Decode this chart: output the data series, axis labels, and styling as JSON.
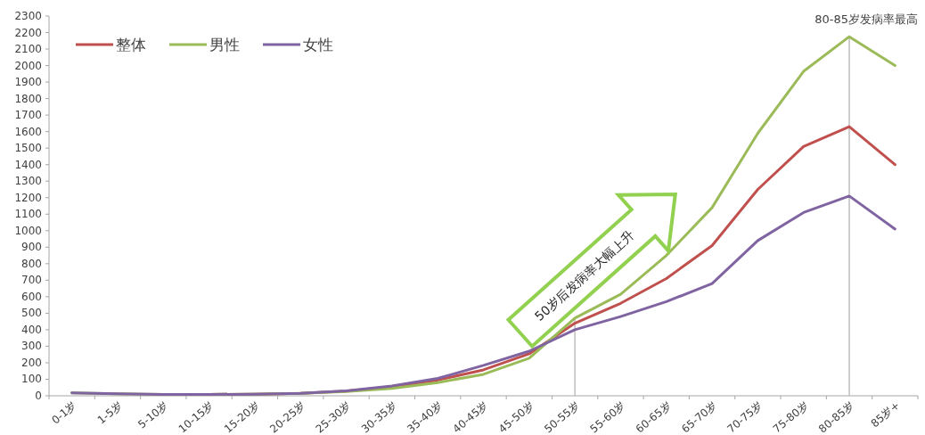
{
  "chart_data": {
    "type": "line",
    "categories": [
      "0-1岁",
      "1-5岁",
      "5-10岁",
      "10-15岁",
      "15-20岁",
      "20-25岁",
      "25-30岁",
      "30-35岁",
      "35-40岁",
      "40-45岁",
      "45-50岁",
      "50-55岁",
      "55-60岁",
      "60-65岁",
      "65-70岁",
      "70-75岁",
      "75-80岁",
      "80-85岁",
      "85岁+"
    ],
    "series": [
      {
        "name": "整体",
        "color": "#c0504d",
        "values": [
          null,
          null,
          8,
          8,
          10,
          15,
          28,
          55,
          95,
          157,
          254,
          440,
          560,
          710,
          910,
          1250,
          1510,
          1630,
          1400
        ]
      },
      {
        "name": "男性",
        "color": "#9bbb59",
        "values": [
          18,
          12,
          8,
          8,
          10,
          15,
          25,
          45,
          80,
          130,
          227,
          470,
          615,
          850,
          1140,
          1590,
          1965,
          2175,
          2000
        ]
      },
      {
        "name": "女性",
        "color": "#8064a2",
        "values": [
          18,
          12,
          8,
          8,
          10,
          15,
          30,
          60,
          105,
          184,
          270,
          400,
          480,
          570,
          680,
          940,
          1110,
          1210,
          1010
        ]
      }
    ],
    "ylim": [
      0,
      2300
    ],
    "yticks": [
      0,
      100,
      200,
      300,
      400,
      500,
      600,
      700,
      800,
      900,
      1000,
      1100,
      1200,
      1300,
      1400,
      1500,
      1600,
      1700,
      1800,
      1900,
      2000,
      2100,
      2200,
      2300
    ],
    "ref_lines": [
      {
        "axis": "x",
        "value": "50-55岁",
        "color": "#bfbfbf"
      },
      {
        "axis": "x",
        "value": "80-85岁",
        "color": "#bfbfbf"
      }
    ],
    "annotations": [
      "80-85岁发病率最高",
      "50岁后发病率大幅上升"
    ],
    "legend": "top left",
    "grid": false,
    "marker": "none",
    "line_style": "solid"
  }
}
